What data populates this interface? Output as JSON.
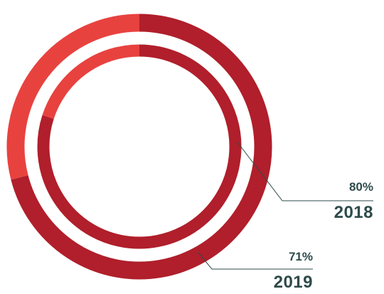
{
  "colors": {
    "value_arc": "#b01f2b",
    "remainder_arc": "#e8423f",
    "label_text": "#2e4a4a"
  },
  "chart_data": {
    "type": "pie",
    "variant": "concentric-donut",
    "title": "",
    "series": [
      {
        "name": "2018",
        "ring": "inner",
        "value": 80,
        "label": "80%",
        "year": "2018"
      },
      {
        "name": "2019",
        "ring": "outer",
        "value": 71,
        "label": "71%",
        "year": "2019"
      }
    ],
    "max": 100,
    "legend": "none"
  }
}
